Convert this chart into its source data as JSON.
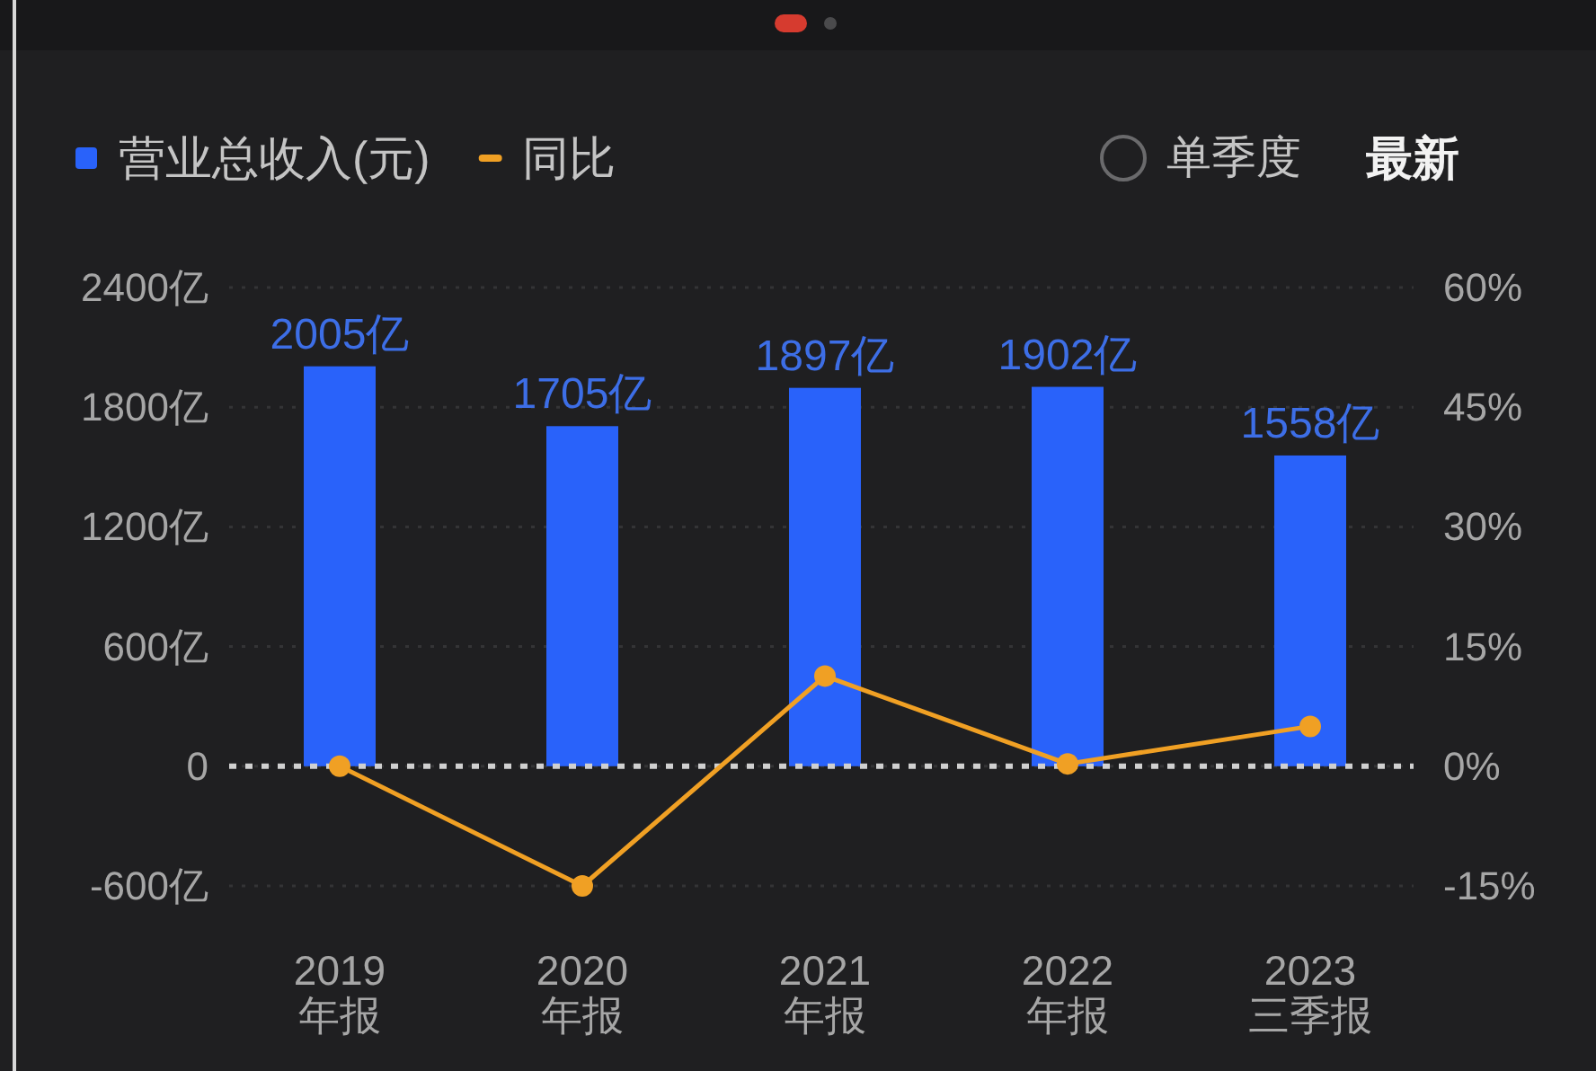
{
  "chart_data": {
    "type": "bar",
    "categories": [
      "2019\n年报",
      "2020\n年报",
      "2021\n年报",
      "2022\n年报",
      "2023\n三季报"
    ],
    "series": [
      {
        "name": "营业总收入(元)",
        "type": "bar",
        "color": "#2962fa",
        "values": [
          2005,
          1705,
          1897,
          1902,
          1558
        ],
        "value_labels": [
          "2005亿",
          "1705亿",
          "1897亿",
          "1902亿",
          "1558亿"
        ]
      },
      {
        "name": "同比",
        "type": "line",
        "axis": "y2",
        "color": "#f0a024",
        "marker": "circle",
        "values": [
          0,
          -15,
          11.3,
          0.3,
          5
        ]
      }
    ],
    "ylim": [
      -600,
      2400
    ],
    "yticks": [
      {
        "value": -600,
        "label": "-600亿"
      },
      0,
      {
        "value": 600,
        "label": "600亿"
      },
      {
        "value": 1200,
        "label": "1200亿"
      },
      {
        "value": 1800,
        "label": "1800亿"
      },
      {
        "value": 2400,
        "label": "2400亿"
      }
    ],
    "y2lim": [
      -15,
      60
    ],
    "y2ticks": [
      {
        "value": -15,
        "label": "-15%"
      },
      {
        "value": 0,
        "label": "0%"
      },
      {
        "value": 15,
        "label": "15%"
      },
      {
        "value": 30,
        "label": "30%"
      },
      {
        "value": 45,
        "label": "45%"
      },
      {
        "value": 60,
        "label": "60%"
      }
    ],
    "grid": "y",
    "legend": "top left",
    "ref_lines": [
      {
        "axis": "y",
        "value": 0,
        "color": "#d0d0d0",
        "line_style": "dotted"
      }
    ],
    "annotations": [
      "单季度",
      "最新"
    ]
  }
}
